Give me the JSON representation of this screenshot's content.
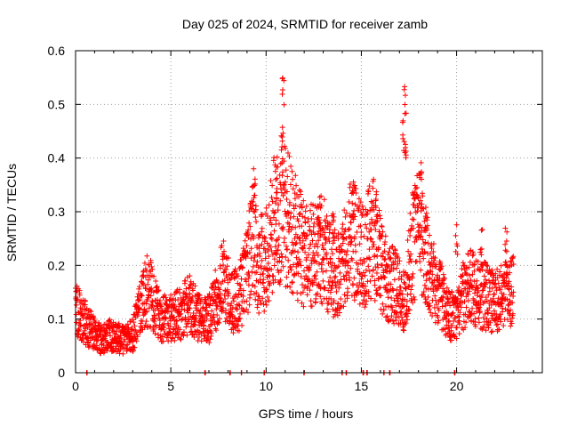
{
  "chart_data": {
    "type": "scatter",
    "title": "Day 025 of 2024, SRMTID for receiver zamb",
    "xlabel": "GPS time / hours",
    "ylabel": "SRMTID / TECUs",
    "xlim": [
      0,
      24.5
    ],
    "ylim": [
      0,
      0.6
    ],
    "xticks": [
      0,
      5,
      10,
      15,
      20
    ],
    "xtick_labels": [
      "0",
      "5",
      "10",
      "15",
      "20"
    ],
    "yticks": [
      0,
      0.1,
      0.2,
      0.3,
      0.4,
      0.5,
      0.6
    ],
    "ytick_labels": [
      "0",
      "0.1",
      "0.2",
      "0.3",
      "0.4",
      "0.5",
      "0.6"
    ],
    "grid": true,
    "marker": "+",
    "series": [
      {
        "name": "SRMTID",
        "color": "#ff0000",
        "profile": [
          [
            0.0,
            0.12
          ],
          [
            0.3,
            0.1
          ],
          [
            0.6,
            0.09
          ],
          [
            1.0,
            0.07
          ],
          [
            1.4,
            0.06
          ],
          [
            1.8,
            0.07
          ],
          [
            2.2,
            0.065
          ],
          [
            2.6,
            0.06
          ],
          [
            3.0,
            0.07
          ],
          [
            3.3,
            0.11
          ],
          [
            3.6,
            0.15
          ],
          [
            3.9,
            0.15
          ],
          [
            4.2,
            0.12
          ],
          [
            4.6,
            0.1
          ],
          [
            5.0,
            0.1
          ],
          [
            5.5,
            0.11
          ],
          [
            6.0,
            0.13
          ],
          [
            6.5,
            0.1
          ],
          [
            7.0,
            0.1
          ],
          [
            7.4,
            0.14
          ],
          [
            7.8,
            0.18
          ],
          [
            8.2,
            0.13
          ],
          [
            8.6,
            0.14
          ],
          [
            9.0,
            0.19
          ],
          [
            9.3,
            0.26
          ],
          [
            9.6,
            0.2
          ],
          [
            10.0,
            0.21
          ],
          [
            10.4,
            0.28
          ],
          [
            10.8,
            0.3
          ],
          [
            11.2,
            0.28
          ],
          [
            11.6,
            0.25
          ],
          [
            12.0,
            0.22
          ],
          [
            12.5,
            0.22
          ],
          [
            13.0,
            0.23
          ],
          [
            13.5,
            0.18
          ],
          [
            14.0,
            0.2
          ],
          [
            14.4,
            0.27
          ],
          [
            14.8,
            0.23
          ],
          [
            15.2,
            0.22
          ],
          [
            15.6,
            0.26
          ],
          [
            16.0,
            0.2
          ],
          [
            16.4,
            0.17
          ],
          [
            16.8,
            0.16
          ],
          [
            17.2,
            0.13
          ],
          [
            17.6,
            0.22
          ],
          [
            18.0,
            0.27
          ],
          [
            18.4,
            0.22
          ],
          [
            18.8,
            0.17
          ],
          [
            19.2,
            0.14
          ],
          [
            19.6,
            0.11
          ],
          [
            20.0,
            0.1
          ],
          [
            20.4,
            0.15
          ],
          [
            20.8,
            0.16
          ],
          [
            21.2,
            0.15
          ],
          [
            21.6,
            0.14
          ],
          [
            22.0,
            0.13
          ],
          [
            22.4,
            0.14
          ],
          [
            22.8,
            0.15
          ],
          [
            23.0,
            0.15
          ]
        ],
        "spikes": [
          [
            9.4,
            0.38
          ],
          [
            10.9,
            0.55
          ],
          [
            10.85,
            0.46
          ],
          [
            10.55,
            0.38
          ],
          [
            17.3,
            0.54
          ],
          [
            17.2,
            0.47
          ],
          [
            17.3,
            0.43
          ],
          [
            18.1,
            0.4
          ],
          [
            18.4,
            0.31
          ],
          [
            14.6,
            0.35
          ],
          [
            15.8,
            0.34
          ],
          [
            13.5,
            0.3
          ],
          [
            12.8,
            0.3
          ],
          [
            21.3,
            0.28
          ],
          [
            22.6,
            0.28
          ],
          [
            20.0,
            0.28
          ]
        ],
        "zeros": [
          0.6,
          6.8,
          8.1,
          8.7,
          9.9,
          12.0,
          14.0,
          14.2,
          15.1,
          15.3,
          16.2,
          16.5,
          19.9
        ]
      }
    ]
  }
}
